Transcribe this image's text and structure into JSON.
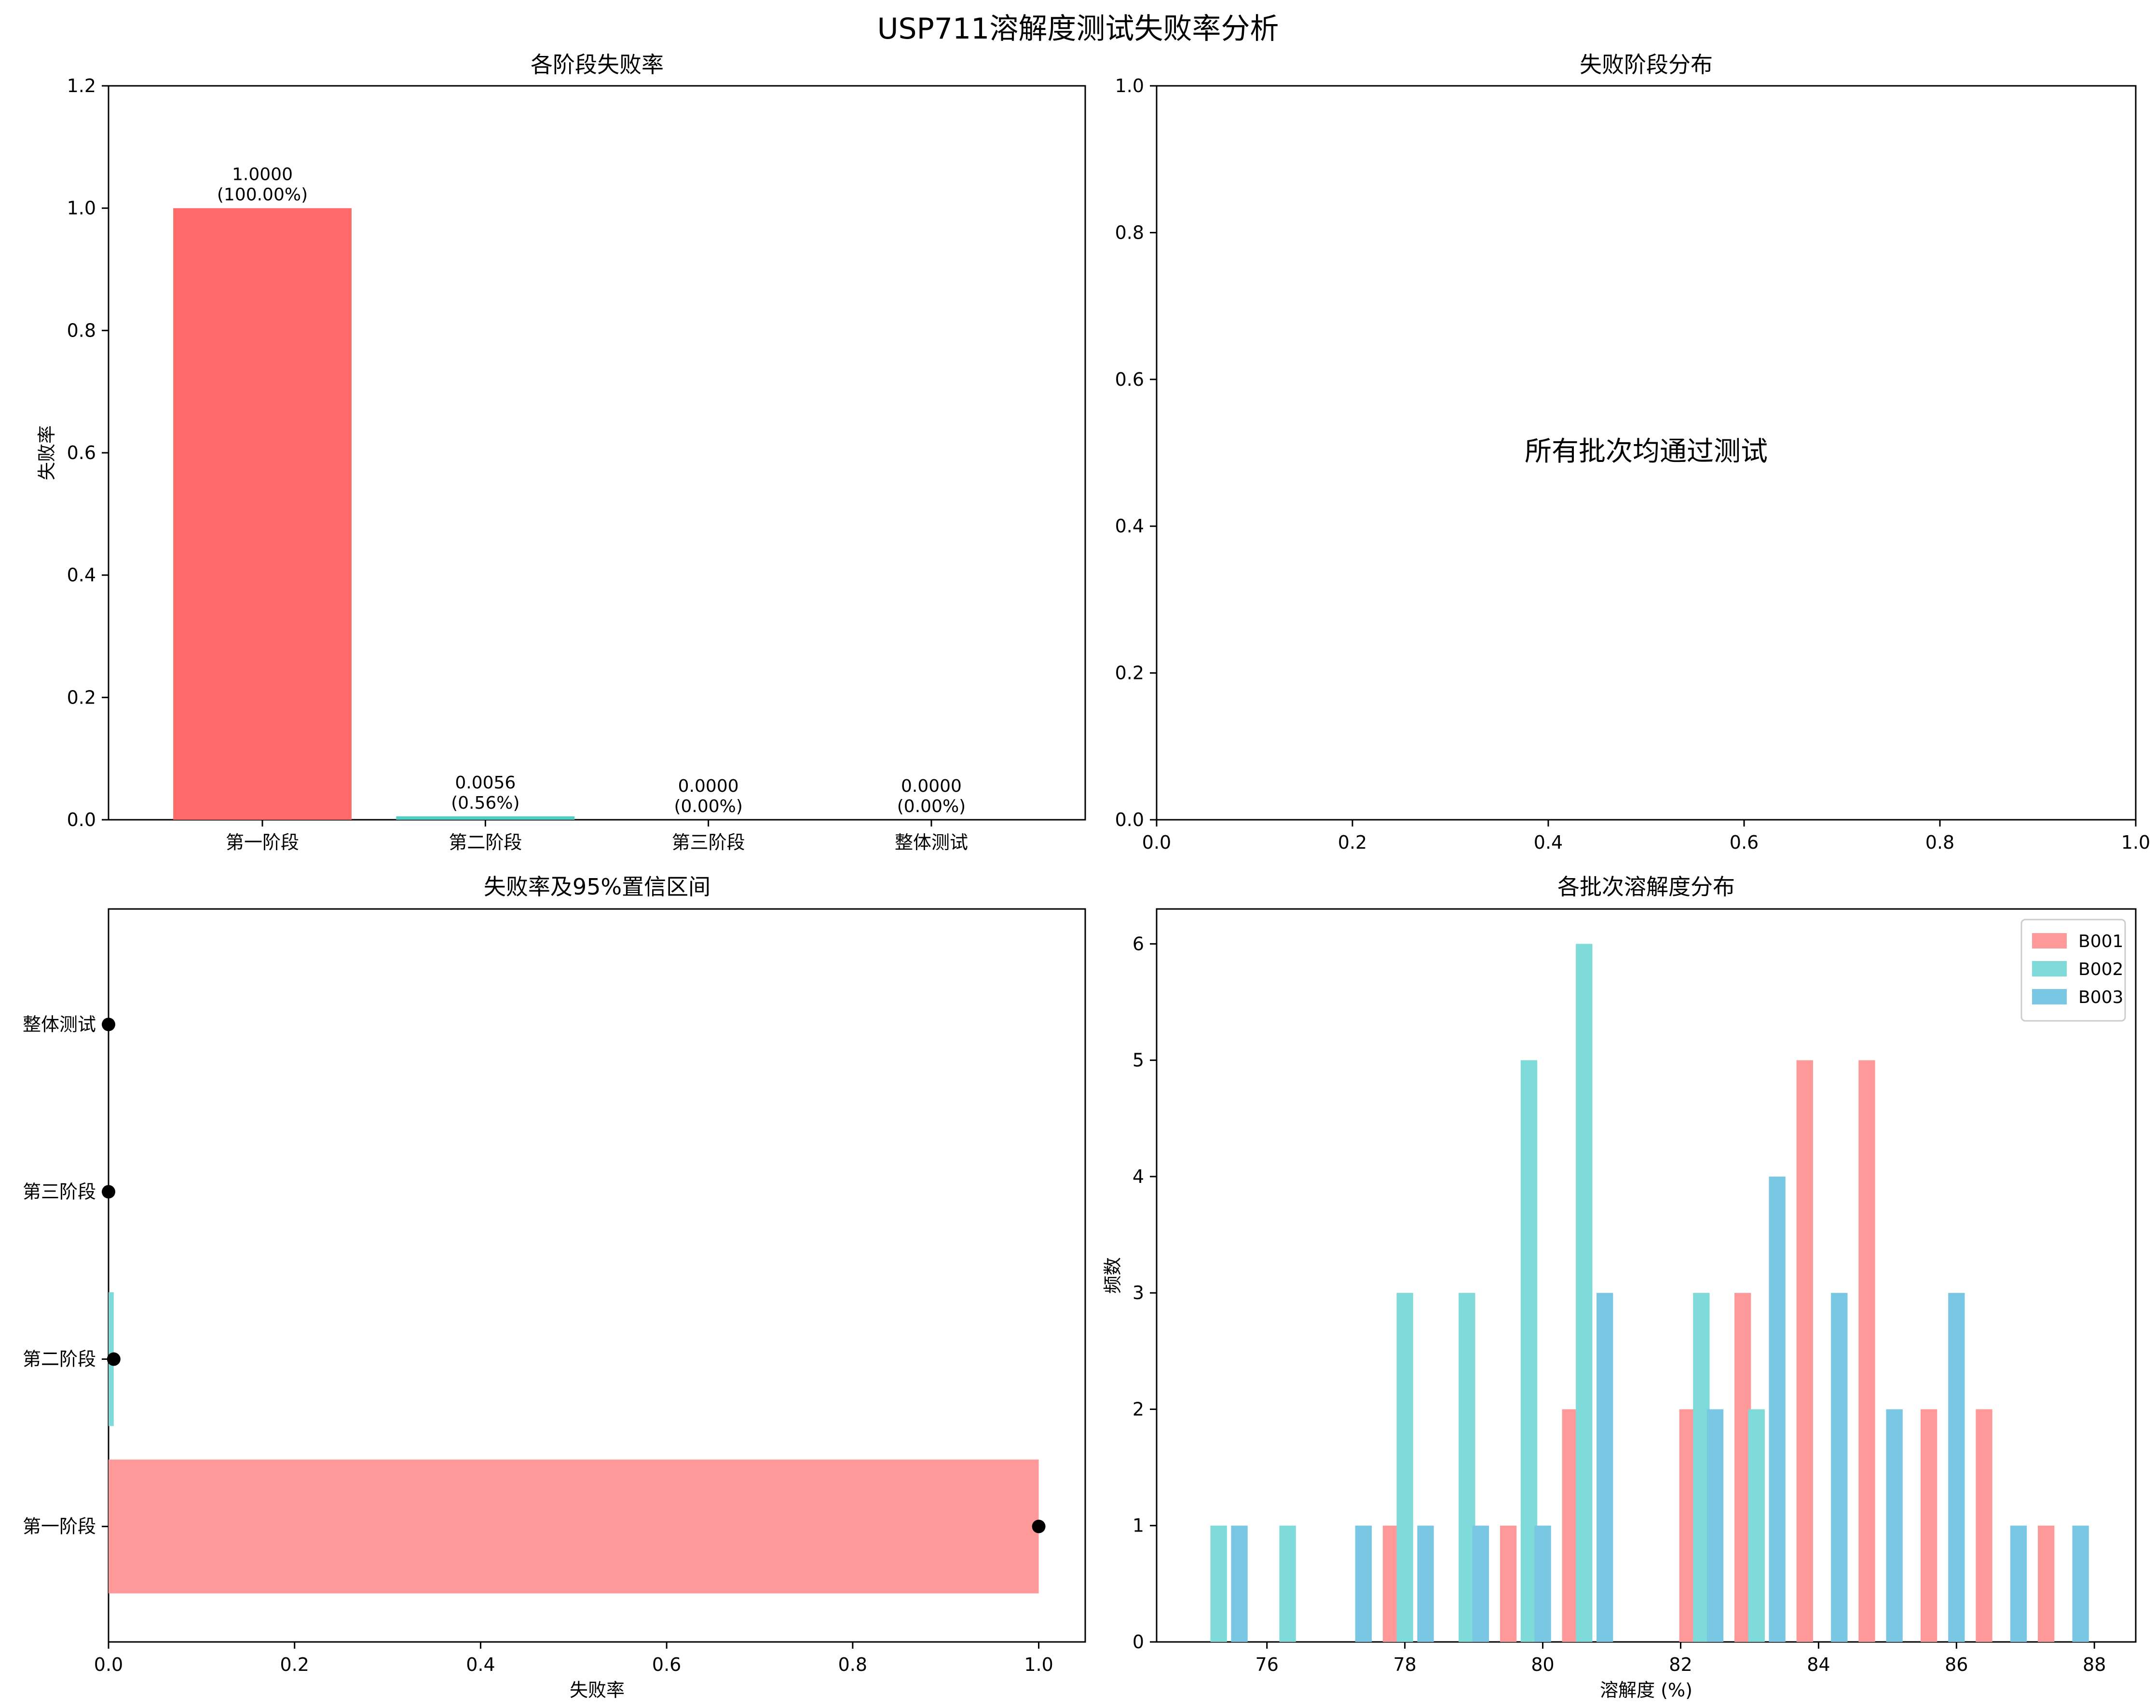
{
  "suptitle": "USP711溶解度测试失败率分析",
  "chart_data": [
    {
      "type": "bar",
      "title": "各阶段失败率",
      "ylabel": "失败率",
      "xlabel": "",
      "categories": [
        "第一阶段",
        "第二阶段",
        "第三阶段",
        "整体测试"
      ],
      "values": [
        1.0,
        0.0056,
        0.0,
        0.0
      ],
      "value_labels": [
        "1.0000",
        "0.0056",
        "0.0000",
        "0.0000"
      ],
      "percent_labels": [
        "(100.00%)",
        "(0.56%)",
        "(0.00%)",
        "(0.00%)"
      ],
      "colors": [
        "#ff6b6b",
        "#4ecdc4",
        "#45b7d1",
        "#96ceb4"
      ],
      "ylim": [
        0,
        1.2
      ],
      "yticks": [
        "0.0",
        "0.2",
        "0.4",
        "0.6",
        "0.8",
        "1.0",
        "1.2"
      ]
    },
    {
      "type": "pie",
      "title": "失败阶段分布",
      "note": "所有批次均通过测试",
      "xlim": [
        0,
        1
      ],
      "ylim": [
        0,
        1
      ],
      "xticks": [
        "0.0",
        "0.2",
        "0.4",
        "0.6",
        "0.8",
        "1.0"
      ],
      "yticks": [
        "0.0",
        "0.2",
        "0.4",
        "0.6",
        "0.8",
        "1.0"
      ]
    },
    {
      "type": "bar",
      "orientation": "horizontal",
      "title": "失败率及95%置信区间",
      "xlabel": "失败率",
      "ylabel": "",
      "categories": [
        "第一阶段",
        "第二阶段",
        "第三阶段",
        "整体测试"
      ],
      "values": [
        1.0,
        0.0056,
        0.0,
        0.0
      ],
      "ci_lower": [
        1.0,
        0.0,
        0.0,
        0.0
      ],
      "ci_upper": [
        1.0,
        0.0056,
        0.0,
        0.0
      ],
      "bar_colors": [
        "#ff9999",
        "#7fdbda",
        "#79c7e3",
        "#b5e0c9"
      ],
      "xlim": [
        0,
        1.05
      ],
      "xticks": [
        "0.0",
        "0.2",
        "0.4",
        "0.6",
        "0.8",
        "1.0"
      ]
    },
    {
      "type": "bar",
      "subtype": "histogram",
      "title": "各批次溶解度分布",
      "xlabel": "溶解度 (%)",
      "ylabel": "频数",
      "xlim": [
        74.4,
        88.6
      ],
      "ylim": [
        0,
        6.3
      ],
      "xticks": [
        "76",
        "78",
        "80",
        "82",
        "84",
        "86",
        "88"
      ],
      "yticks": [
        "0",
        "1",
        "2",
        "3",
        "4",
        "5",
        "6"
      ],
      "legend_position": "top-right",
      "series": [
        {
          "name": "B001",
          "color": "#ff9999",
          "bars": [
            {
              "x": 77.8,
              "count": 1
            },
            {
              "x": 79.5,
              "count": 1
            },
            {
              "x": 80.4,
              "count": 2
            },
            {
              "x": 82.1,
              "count": 2
            },
            {
              "x": 82.9,
              "count": 3
            },
            {
              "x": 83.8,
              "count": 5
            },
            {
              "x": 84.7,
              "count": 5
            },
            {
              "x": 85.6,
              "count": 2
            },
            {
              "x": 86.4,
              "count": 2
            },
            {
              "x": 87.3,
              "count": 1
            }
          ]
        },
        {
          "name": "B002",
          "color": "#7fdbda",
          "bars": [
            {
              "x": 75.3,
              "count": 1
            },
            {
              "x": 76.3,
              "count": 1
            },
            {
              "x": 78.0,
              "count": 3
            },
            {
              "x": 78.9,
              "count": 3
            },
            {
              "x": 79.8,
              "count": 5
            },
            {
              "x": 80.6,
              "count": 6
            },
            {
              "x": 82.3,
              "count": 3
            },
            {
              "x": 83.1,
              "count": 2
            }
          ]
        },
        {
          "name": "B003",
          "color": "#79c7e3",
          "bars": [
            {
              "x": 75.6,
              "count": 1
            },
            {
              "x": 77.4,
              "count": 1
            },
            {
              "x": 78.3,
              "count": 1
            },
            {
              "x": 79.1,
              "count": 1
            },
            {
              "x": 80.0,
              "count": 1
            },
            {
              "x": 80.9,
              "count": 3
            },
            {
              "x": 82.5,
              "count": 2
            },
            {
              "x": 83.4,
              "count": 4
            },
            {
              "x": 84.3,
              "count": 3
            },
            {
              "x": 85.1,
              "count": 2
            },
            {
              "x": 86.0,
              "count": 3
            },
            {
              "x": 86.9,
              "count": 1
            },
            {
              "x": 87.8,
              "count": 1
            }
          ]
        }
      ]
    }
  ]
}
